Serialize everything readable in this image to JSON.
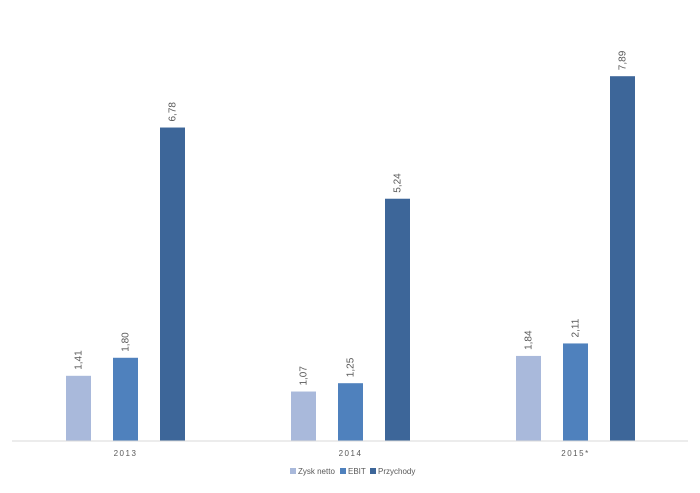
{
  "chart_data": {
    "type": "bar",
    "title": "",
    "xlabel": "",
    "ylabel": "",
    "categories": [
      "2013",
      "2014",
      "2015*"
    ],
    "series": [
      {
        "name": "Zysk netto",
        "values": [
          1.41,
          1.07,
          1.84
        ],
        "labels": [
          "1,41",
          "1,07",
          "1,84"
        ],
        "color": "#a9b9db"
      },
      {
        "name": "EBIT",
        "values": [
          1.8,
          1.25,
          2.11
        ],
        "labels": [
          "1,80",
          "1,25",
          "2,11"
        ],
        "color": "#4f81bd"
      },
      {
        "name": "Przychody",
        "values": [
          6.78,
          5.24,
          7.89
        ],
        "labels": [
          "6,78",
          "5,24",
          "7,89"
        ],
        "color": "#3d6699"
      }
    ],
    "ylim": [
      0,
      8.5
    ],
    "grid": false,
    "y_axis_visible": false,
    "data_labels": true,
    "data_label_rotation": "vertical",
    "legend_position": "bottom"
  }
}
